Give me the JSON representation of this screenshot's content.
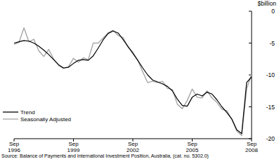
{
  "chart_data": {
    "type": "line",
    "y_label": "$billion",
    "source": "Source: Balance of Payments and International Investment Position, Australia, (cat. no. 5302.0)",
    "categories": [
      "Sep 1996",
      null,
      null,
      null,
      null,
      null,
      null,
      null,
      null,
      null,
      null,
      null,
      "Sep 1999",
      null,
      null,
      null,
      null,
      null,
      null,
      null,
      null,
      null,
      null,
      null,
      "Sep 2002",
      null,
      null,
      null,
      null,
      null,
      null,
      null,
      null,
      null,
      null,
      null,
      "Sep 2005",
      null,
      null,
      null,
      null,
      null,
      null,
      null,
      null,
      null,
      null,
      null,
      "Sep 2008"
    ],
    "series": [
      {
        "name": "Trend",
        "color": "#000000",
        "values": [
          -5.0,
          -4.8,
          -4.6,
          -4.7,
          -5.0,
          -5.5,
          -6.1,
          -6.8,
          -7.6,
          -8.4,
          -8.9,
          -8.8,
          -8.2,
          -7.7,
          -7.6,
          -7.7,
          -7.0,
          -5.8,
          -4.5,
          -3.5,
          -3.1,
          -3.4,
          -4.4,
          -5.5,
          -6.6,
          -7.7,
          -8.9,
          -10.0,
          -10.8,
          -11.1,
          -11.4,
          -11.8,
          -12.5,
          -13.8,
          -14.8,
          -14.9,
          -13.5,
          -13.0,
          -13.3,
          -12.7,
          -13.0,
          -13.9,
          -15.0,
          -15.9,
          -16.9,
          -18.6,
          -19.2,
          -11.2,
          -10.3
        ]
      },
      {
        "name": "Seasonally Adjusted",
        "color": "#a6a6a6",
        "values": [
          -5.2,
          -4.9,
          -2.6,
          -4.8,
          -4.4,
          -6.2,
          -7.1,
          -6.0,
          -7.5,
          -8.5,
          -9.0,
          -8.7,
          -7.4,
          -8.0,
          -7.3,
          -7.6,
          -5.0,
          -5.0,
          -4.2,
          -3.4,
          -3.0,
          -3.8,
          -4.1,
          -5.6,
          -6.4,
          -7.7,
          -9.5,
          -11.2,
          -11.0,
          -11.2,
          -11.0,
          -12.1,
          -12.3,
          -14.6,
          -15.3,
          -14.0,
          -12.2,
          -13.5,
          -13.6,
          -12.5,
          -13.6,
          -14.3,
          -15.4,
          -15.6,
          -17.0,
          -18.8,
          -19.5,
          -12.2,
          -9.9
        ]
      }
    ],
    "ylim": [
      -20,
      0
    ],
    "yticks": [
      0,
      -5,
      -10,
      -15,
      -20
    ],
    "grid": false,
    "legend": "lower left"
  }
}
